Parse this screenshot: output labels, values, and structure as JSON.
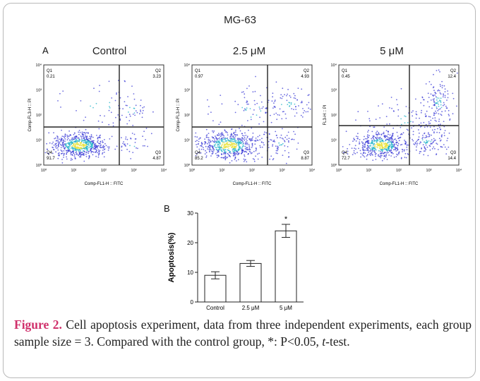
{
  "figure": {
    "main_title": "MG-63",
    "panel_a_letter": "A",
    "panel_b_letter": "B"
  },
  "flow_panels": [
    {
      "title": "Control",
      "xlabel": "Comp-FL1-H :: FITC",
      "ylabel": "Comp-FL3-H :: PI",
      "quadrants": {
        "Q1": "0.21",
        "Q2": "3.23",
        "Q3": "4.87",
        "Q4": "91.7"
      },
      "tick_labels": [
        "10⁰",
        "10¹",
        "10²",
        "10³",
        "10⁴"
      ]
    },
    {
      "title": "2.5 μM",
      "xlabel": "Comp-FL1-H :: FITC",
      "ylabel": "Comp-FL3-H :: PI",
      "quadrants": {
        "Q1": "0.97",
        "Q2": "4.93",
        "Q3": "8.87",
        "Q4": "85.2"
      },
      "tick_labels": [
        "10⁰",
        "10¹",
        "10²",
        "10³",
        "10⁴"
      ]
    },
    {
      "title": "5 μM",
      "xlabel": "Comp-FL1-H :: FITC",
      "ylabel": "FL3-H :: PI",
      "quadrants": {
        "Q1": "0.45",
        "Q2": "12.4",
        "Q3": "14.4",
        "Q4": "72.7"
      },
      "tick_labels": [
        "10⁰",
        "10¹",
        "10²",
        "10³",
        "10⁴"
      ]
    }
  ],
  "chart_data": {
    "type": "bar",
    "categories": [
      "Control",
      "2.5 μM",
      "5 μM"
    ],
    "values": [
      9,
      13,
      24
    ],
    "errors": [
      1.2,
      1.0,
      2.2
    ],
    "significance": [
      "",
      "",
      "*"
    ],
    "ylabel": "Apoptosis(%)",
    "ylim": [
      0,
      30
    ],
    "yticks": [
      0,
      10,
      20,
      30
    ]
  },
  "caption": {
    "lead": "Figure 2.",
    "text": " Cell apoptosis experiment, data from three independent experiments, each group sample size = 3. Compared with the control group, *: P<0.05, ",
    "italic": "t",
    "tail": "-test."
  },
  "colors": {
    "caption_lead": "#d0306b",
    "dots_low": "#3b3bd6",
    "dots_mid": "#22b3c8",
    "dots_high": "#e8e23a"
  }
}
